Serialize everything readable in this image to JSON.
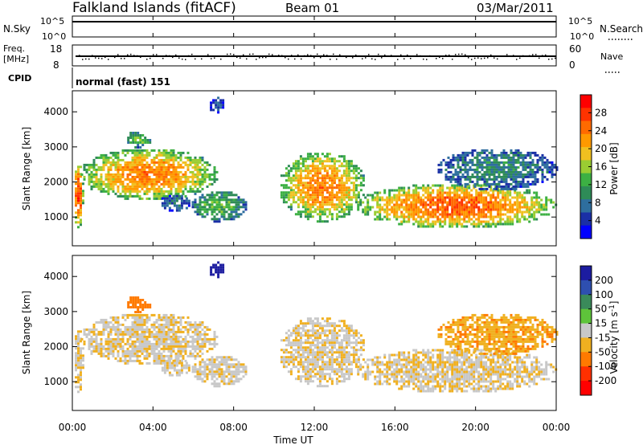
{
  "chart_data": {
    "type": "heatmap",
    "header": {
      "station": "Falkland Islands (fitACF)",
      "beam": "Beam 01",
      "date": "03/Mar/2011"
    },
    "noise_panel": {
      "left_label": "N.Sky",
      "right_label": "N.Search",
      "left_ticks": [
        "10^5",
        "10^0"
      ],
      "right_ticks": [
        "10^5",
        "10^0"
      ],
      "log_range": [
        0,
        5
      ]
    },
    "freq_panel": {
      "left_label_top": "Freq.",
      "left_label_bottom": "[MHz]",
      "right_label": "Nave",
      "left_ticks": [
        "18",
        "8"
      ],
      "right_ticks": [
        "60",
        "0"
      ],
      "freq_range": [
        8,
        18
      ],
      "nave_range": [
        0,
        60
      ]
    },
    "cpid": {
      "label": "CPID",
      "text": "normal (fast) 151"
    },
    "time_axis": {
      "label": "Time UT",
      "ticks": [
        "00:00",
        "04:00",
        "08:00",
        "12:00",
        "16:00",
        "20:00",
        "00:00"
      ],
      "range_hours": [
        0,
        24
      ]
    },
    "range_axis": {
      "label": "Slant Range [km]",
      "ticks": [
        "1000",
        "2000",
        "3000",
        "4000"
      ],
      "range_km": [
        180,
        4600
      ]
    },
    "power": {
      "colorbar_label": "Power [dB]",
      "ticks": [
        "4",
        "8",
        "12",
        "16",
        "20",
        "24",
        "28"
      ],
      "range": [
        0,
        32
      ],
      "colors": [
        "#0000ff",
        "#1a2fa6",
        "#2e6e9e",
        "#2e8b57",
        "#3cb043",
        "#9acd32",
        "#f0c020",
        "#ff9900",
        "#ff6a00",
        "#ff3300",
        "#ff0000"
      ]
    },
    "velocity": {
      "colorbar_label": "Velocity [m s^-1]",
      "ticks": [
        "200",
        "100",
        "50",
        "15",
        "-15",
        "-50",
        "-100",
        "-200"
      ],
      "colors": [
        "#1c1ca0",
        "#2e4fb0",
        "#3a8a5a",
        "#5ec43a",
        "#c8c8c8",
        "#f0b020",
        "#ff7a00",
        "#ff3000",
        "#ff0000"
      ]
    },
    "echo_regions": [
      {
        "t0": 0.0,
        "t1": 0.5,
        "r0": 700,
        "r1": 2600,
        "p": 28,
        "v": -15
      },
      {
        "t0": 0.3,
        "t1": 7.2,
        "r0": 1500,
        "r1": 3000,
        "p": 24,
        "v": -10
      },
      {
        "t0": 2.6,
        "t1": 3.9,
        "r0": 3000,
        "r1": 3500,
        "p": 14,
        "v": -80
      },
      {
        "t0": 4.3,
        "t1": 5.8,
        "r0": 1200,
        "r1": 1700,
        "p": 8,
        "v": -5
      },
      {
        "t0": 5.8,
        "t1": 8.6,
        "r0": 900,
        "r1": 1800,
        "p": 14,
        "v": -5
      },
      {
        "t0": 6.7,
        "t1": 7.5,
        "r0": 4000,
        "r1": 4500,
        "p": 6,
        "v": 220
      },
      {
        "t0": 10.2,
        "t1": 14.5,
        "r0": 900,
        "r1": 2900,
        "p": 24,
        "v": -10
      },
      {
        "t0": 14.0,
        "t1": 24.0,
        "r0": 700,
        "r1": 2000,
        "p": 26,
        "v": -10
      },
      {
        "t0": 18.0,
        "t1": 24.0,
        "r0": 1800,
        "r1": 3000,
        "p": 10,
        "v": -40
      }
    ]
  }
}
